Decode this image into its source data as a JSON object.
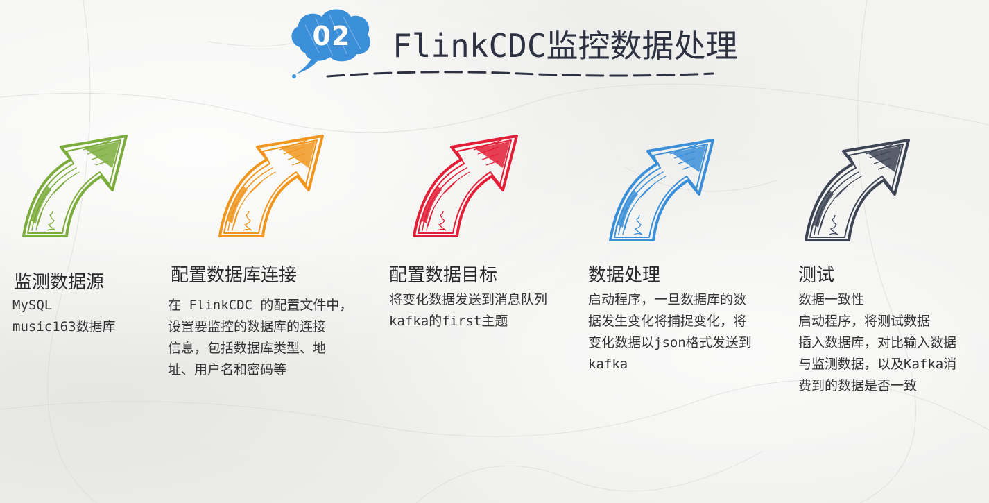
{
  "header": {
    "badge_number": "02",
    "title": "FlinkCDC监控数据处理"
  },
  "colors": {
    "step1": "#7cad3c",
    "step2": "#f0961e",
    "step3": "#e31e37",
    "step4": "#3b8fd8",
    "step5": "#3d4454",
    "badge": "#3b8fd8",
    "dashes": "#2d3142"
  },
  "steps": [
    {
      "title": "监测数据源",
      "lines": [
        "MySQL",
        "music163数据库"
      ],
      "icon": "curved-arrow-icon"
    },
    {
      "title": "配置数据库连接",
      "lines": [
        "在 FlinkCDC 的配置文件中，",
        "设置要监控的数据库的连接",
        "信息，包括数据库类型、地",
        "址、用户名和密码等"
      ],
      "icon": "curved-arrow-icon"
    },
    {
      "title": "配置数据目标",
      "lines": [
        "将变化数据发送到消息队列",
        "kafka的first主题"
      ],
      "icon": "curved-arrow-icon"
    },
    {
      "title": "数据处理",
      "lines": [
        "启动程序，一旦数据库的数",
        "据发生变化将捕捉变化，将",
        "变化数据以json格式发送到",
        "kafka"
      ],
      "icon": "curved-arrow-icon"
    },
    {
      "title": "测试",
      "lines": [
        "数据一致性",
        "启动程序，将测试数据",
        "插入数据库，对比输入数据",
        "与监测数据，以及Kafka消",
        "费到的数据是否一致"
      ],
      "icon": "curved-arrow-icon"
    }
  ]
}
